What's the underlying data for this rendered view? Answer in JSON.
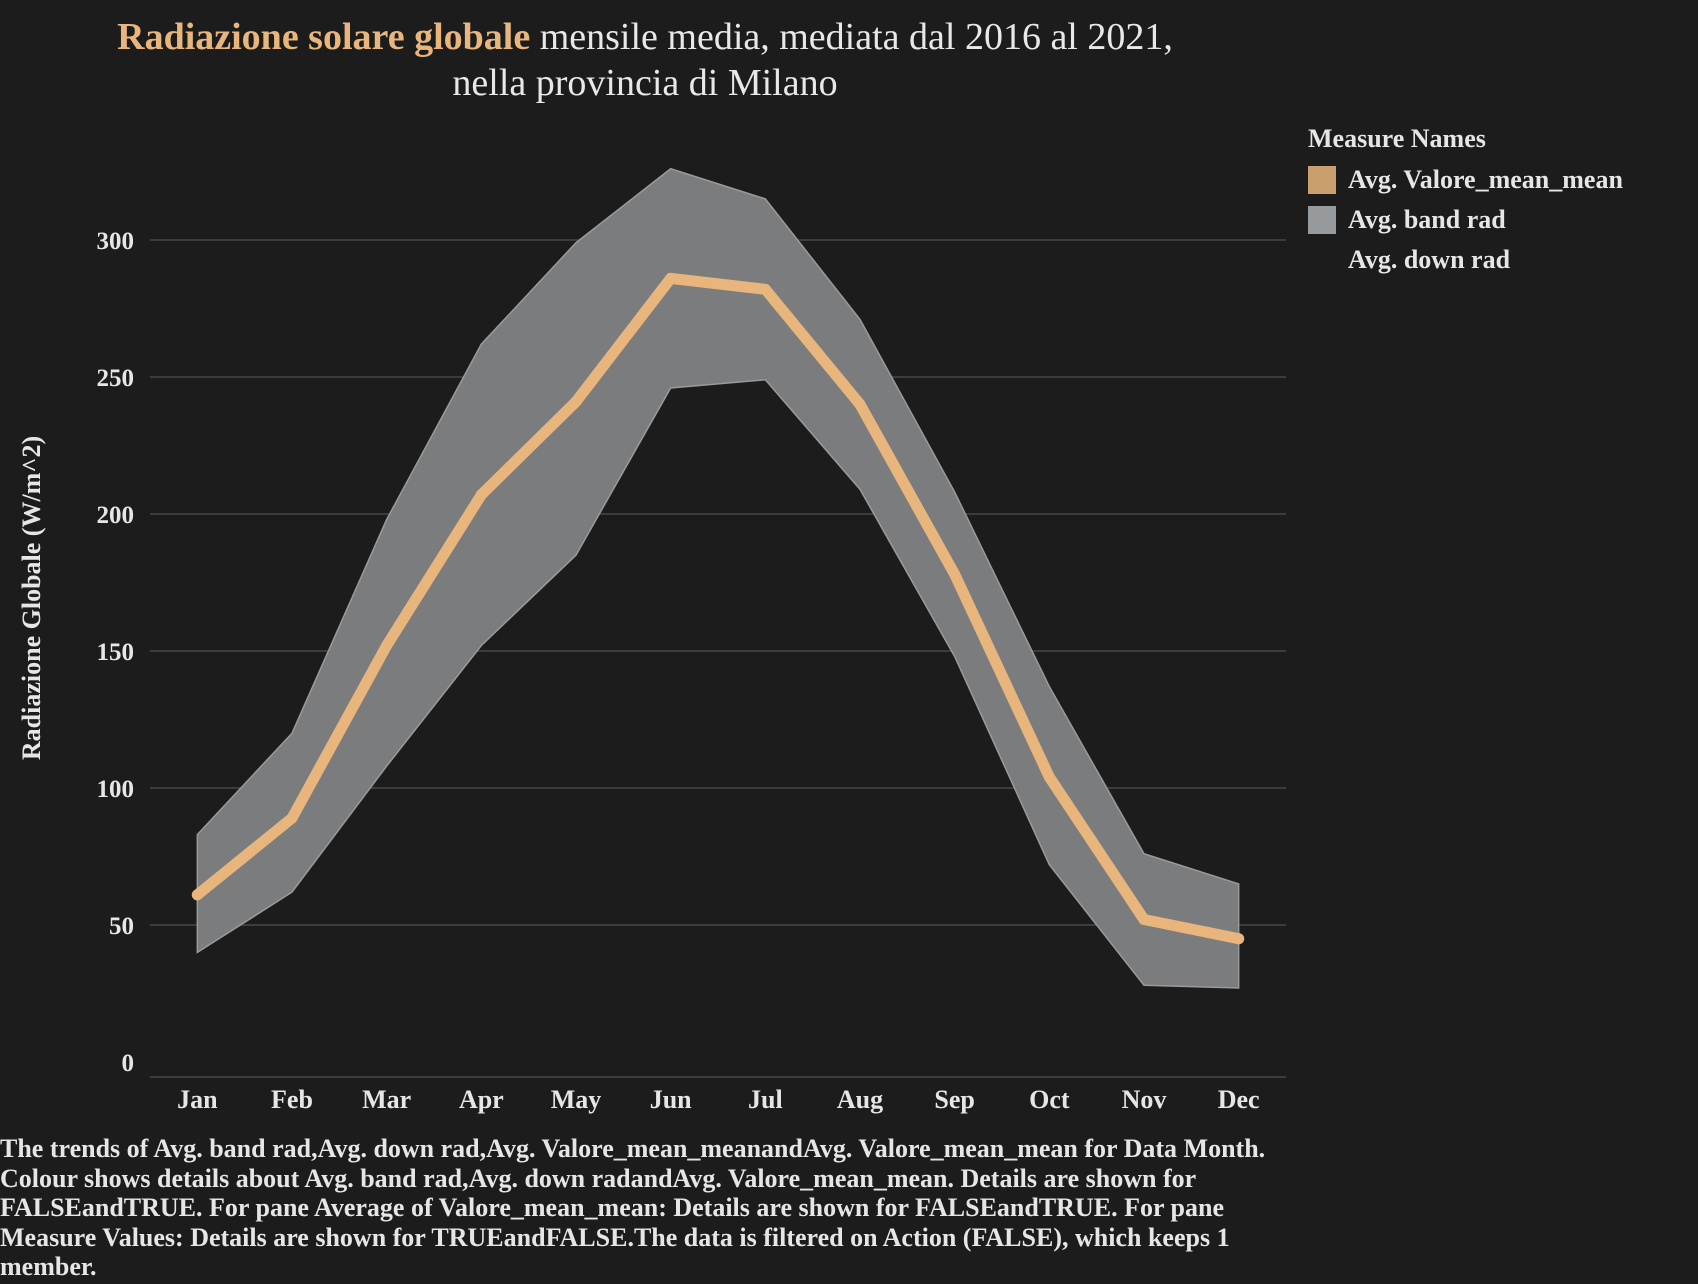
{
  "title": {
    "highlight": "Radiazione solare globale",
    "rest_line1": " mensile media, mediata dal 2016 al 2021,",
    "line2": "nella provincia di Milano"
  },
  "legend": {
    "title": "Measure Names",
    "items": [
      {
        "label": "Avg. Valore_mean_mean",
        "color": "#c99f6e"
      },
      {
        "label": "Avg. band rad",
        "color": "#969a9c"
      },
      {
        "label": "Avg. down rad",
        "color": "#1c1c1c"
      }
    ]
  },
  "caption": "The trends of Avg. band rad,Avg. down rad,Avg. Valore_mean_meanandAvg. Valore_mean_mean for Data Month. Colour shows details about Avg. band rad,Avg. down radandAvg. Valore_mean_mean. Details are shown for FALSEandTRUE. For pane Average of Valore_mean_mean: Details are shown for FALSEandTRUE. For pane Measure Values: Details are shown for TRUEandFALSE.The data is filtered on Action (FALSE), which keeps 1 member.",
  "colors": {
    "background": "#1c1c1c",
    "line": "#e8b57c",
    "band": "#7b7c7d",
    "band_edge": "#9a9a9a",
    "grid": "#474747"
  },
  "chart_data": {
    "type": "line",
    "title": "Radiazione solare globale mensile media, mediata dal 2016 al 2021, nella provincia di Milano",
    "xlabel": "",
    "ylabel": "Radiazione Globale (W/m^2)",
    "categories": [
      "Jan",
      "Feb",
      "Mar",
      "Apr",
      "May",
      "Jun",
      "Jul",
      "Aug",
      "Sep",
      "Oct",
      "Nov",
      "Dec"
    ],
    "yticks": [
      0,
      50,
      100,
      150,
      200,
      250,
      300
    ],
    "ylim": [
      -5,
      330
    ],
    "grid": true,
    "legend_position": "right",
    "series": [
      {
        "name": "Avg. Valore_mean_mean",
        "values": [
          61,
          89,
          152,
          207,
          241,
          286,
          282,
          240,
          178,
          104,
          52,
          45
        ]
      },
      {
        "name": "Avg. band rad",
        "type": "band",
        "upper": [
          83,
          120,
          198,
          262,
          299,
          326,
          315,
          271,
          208,
          137,
          76,
          65
        ],
        "lower": [
          40,
          62,
          108,
          152,
          185,
          246,
          249,
          209,
          148,
          72,
          28,
          27
        ]
      }
    ]
  }
}
